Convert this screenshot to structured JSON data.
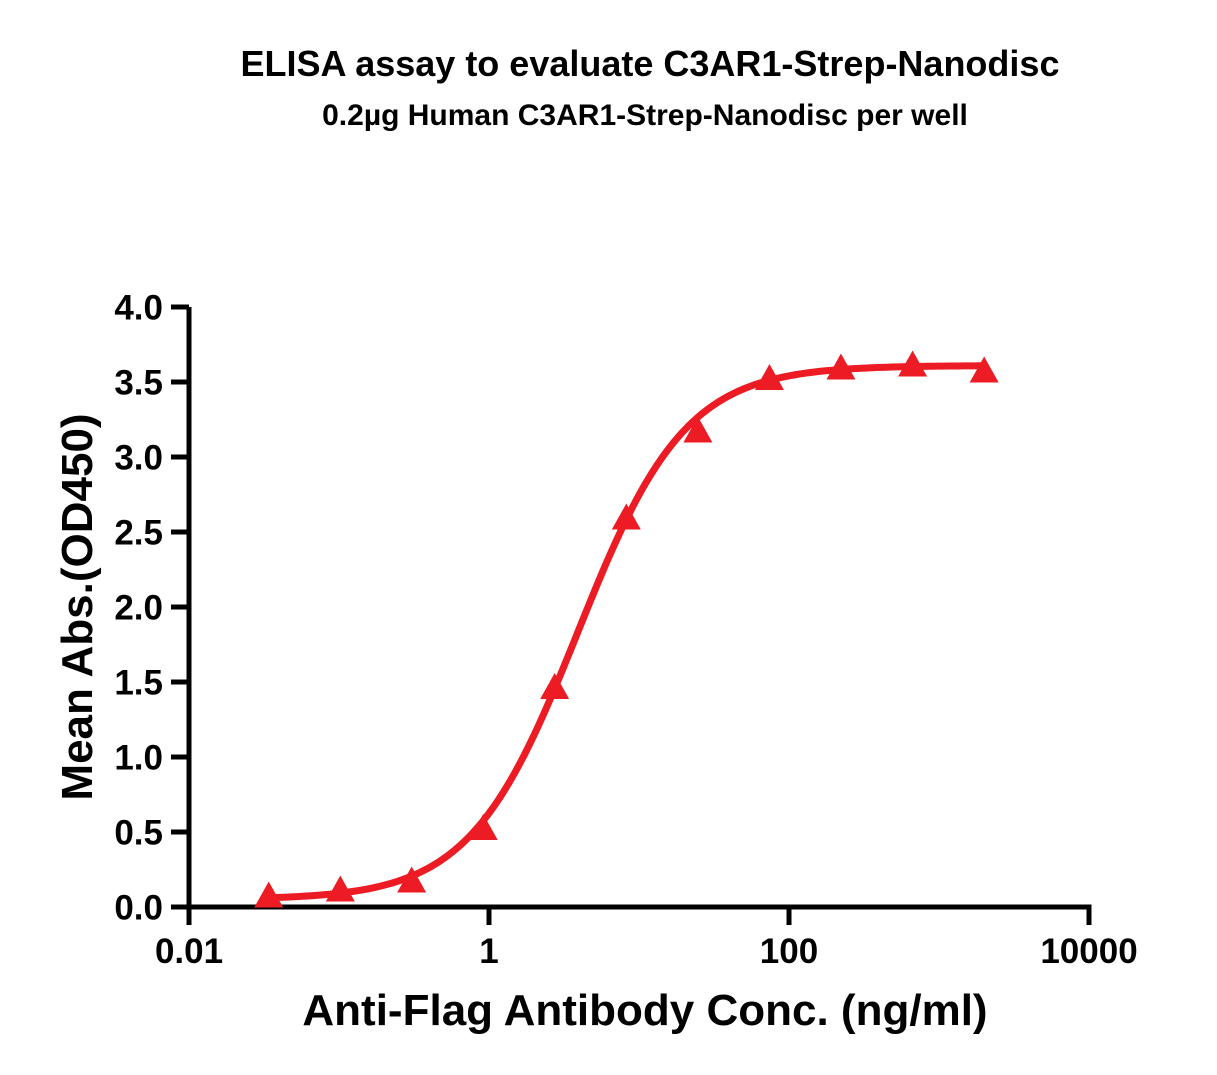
{
  "chart_data": {
    "type": "line",
    "title": "ELISA assay to evaluate C3AR1-Strep-Nanodisc",
    "subtitle": "0.2µg Human C3AR1-Strep-Nanodisc per well",
    "xlabel": "Anti-Flag Antibody Conc. (ng/ml)",
    "ylabel": "Mean Abs.(OD450)",
    "x_scale": "log10",
    "xlim": [
      0.01,
      10000
    ],
    "ylim": [
      0.0,
      4.0
    ],
    "grid": false,
    "legend": "none",
    "colors": {
      "series": "#ED1C24",
      "axis": "#000000",
      "background": "#FFFFFF"
    },
    "x_ticks": [
      {
        "label": "0.01",
        "value": 0.01
      },
      {
        "label": "1",
        "value": 1
      },
      {
        "label": "100",
        "value": 100
      },
      {
        "label": "10000",
        "value": 10000
      }
    ],
    "y_ticks": [
      {
        "label": "0.0",
        "value": 0.0
      },
      {
        "label": "0.5",
        "value": 0.5
      },
      {
        "label": "1.0",
        "value": 1.0
      },
      {
        "label": "1.5",
        "value": 1.5
      },
      {
        "label": "2.0",
        "value": 2.0
      },
      {
        "label": "2.5",
        "value": 2.5
      },
      {
        "label": "3.0",
        "value": 3.0
      },
      {
        "label": "3.5",
        "value": 3.5
      },
      {
        "label": "4.0",
        "value": 4.0
      }
    ],
    "series": [
      {
        "marker": "filled-triangle-up",
        "color": "#ED1C24",
        "points": [
          {
            "x": 0.034,
            "y": 0.07
          },
          {
            "x": 0.102,
            "y": 0.11
          },
          {
            "x": 0.305,
            "y": 0.17
          },
          {
            "x": 0.915,
            "y": 0.52
          },
          {
            "x": 2.74,
            "y": 1.46
          },
          {
            "x": 8.23,
            "y": 2.59
          },
          {
            "x": 24.7,
            "y": 3.17
          },
          {
            "x": 74.1,
            "y": 3.52
          },
          {
            "x": 222,
            "y": 3.59
          },
          {
            "x": 667,
            "y": 3.61
          },
          {
            "x": 2000,
            "y": 3.57
          }
        ]
      }
    ],
    "fit_curve": {
      "model": "4PL",
      "bottom": 0.05,
      "top": 3.61,
      "ec50": 3.9,
      "hill": 1.21,
      "x_range": [
        0.034,
        2000
      ]
    }
  }
}
